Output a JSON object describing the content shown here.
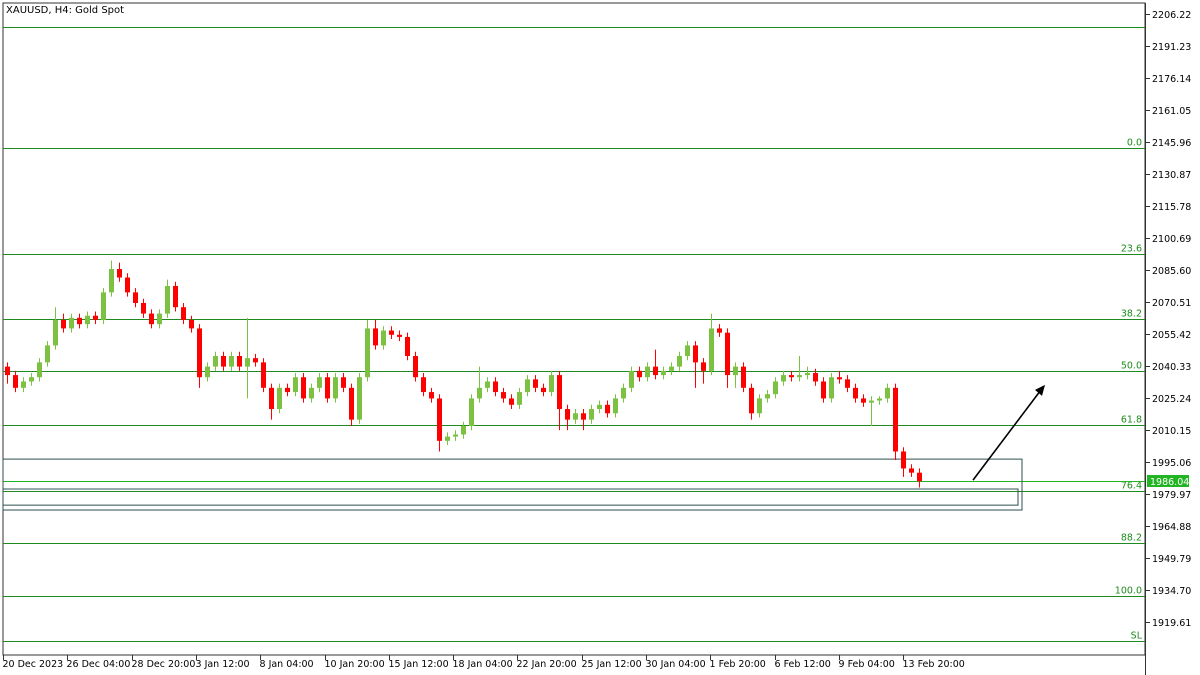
{
  "header": {
    "title": "XAUUSD, H4:  Gold Spot"
  },
  "colors": {
    "bull": "#7dc142",
    "bear": "#ff0000",
    "level_line": "#1f8a1f",
    "bid_line": "#22b422",
    "bid_badge": "#22b422",
    "zone": "#2f4f4f",
    "arrow": "#000000",
    "frame": "#333333"
  },
  "chart_data": {
    "type": "candlestick",
    "symbol": "XAUUSD",
    "timeframe": "H4",
    "ylim": [
      1900,
      2212
    ],
    "grid": false,
    "y_ticks": [
      "2206.22",
      "2191.23",
      "2176.14",
      "2161.05",
      "2145.96",
      "2130.87",
      "2115.78",
      "2100.69",
      "2085.60",
      "2070.51",
      "2055.42",
      "2040.33",
      "2025.24",
      "2010.15",
      "1995.06",
      "1979.97",
      "1964.88",
      "1949.79",
      "1934.70",
      "1919.61"
    ],
    "x_ticks": [
      "20 Dec 2023",
      "26 Dec 04:00",
      "28 Dec 20:00",
      "3 Jan 12:00",
      "8 Jan 04:00",
      "10 Jan 20:00",
      "15 Jan 12:00",
      "18 Jan 04:00",
      "22 Jan 20:00",
      "25 Jan 12:00",
      "30 Jan 04:00",
      "1 Feb 20:00",
      "6 Feb 12:00",
      "9 Feb 04:00",
      "13 Feb 20:00"
    ],
    "current_price": "1986.04",
    "levels": [
      {
        "label": "",
        "price": 2200.09
      },
      {
        "label": "0.0",
        "price": 2143.05
      },
      {
        "label": "23.6",
        "price": 2093.08
      },
      {
        "label": "38.2",
        "price": 2062.44
      },
      {
        "label": "50.0",
        "price": 2037.92
      },
      {
        "label": "61.8",
        "price": 2012.47
      },
      {
        "label": "76.4",
        "price": 1981.36
      },
      {
        "label": "88.2",
        "price": 1956.85
      },
      {
        "label": "100.0",
        "price": 1931.87
      },
      {
        "label": "SL",
        "price": 1910.65
      }
    ],
    "zones": [
      {
        "top": 1996.4,
        "bottom": 1972.4
      },
      {
        "top": 1982.3,
        "bottom": 1974.7
      }
    ],
    "arrow": {
      "from_price": 1986.5,
      "to_price": 2031.4
    },
    "ohlc": [
      [
        2040,
        2042,
        2032,
        2036
      ],
      [
        2036,
        2038,
        2028,
        2030
      ],
      [
        2030,
        2035,
        2028,
        2033
      ],
      [
        2033,
        2037,
        2031,
        2035
      ],
      [
        2035,
        2044,
        2033,
        2042
      ],
      [
        2042,
        2052,
        2040,
        2050
      ],
      [
        2050,
        2068,
        2048,
        2062
      ],
      [
        2062,
        2065,
        2056,
        2058
      ],
      [
        2058,
        2065,
        2056,
        2063
      ],
      [
        2063,
        2065,
        2058,
        2060
      ],
      [
        2060,
        2066,
        2058,
        2064
      ],
      [
        2064,
        2066,
        2060,
        2062
      ],
      [
        2062,
        2077,
        2060,
        2075
      ],
      [
        2075,
        2090,
        2073,
        2086
      ],
      [
        2086,
        2089,
        2080,
        2082
      ],
      [
        2082,
        2084,
        2073,
        2075
      ],
      [
        2075,
        2077,
        2068,
        2070
      ],
      [
        2070,
        2072,
        2063,
        2065
      ],
      [
        2065,
        2067,
        2058,
        2060
      ],
      [
        2060,
        2067,
        2058,
        2065
      ],
      [
        2065,
        2081,
        2063,
        2078
      ],
      [
        2078,
        2080,
        2066,
        2068
      ],
      [
        2068,
        2070,
        2060,
        2062
      ],
      [
        2062,
        2064,
        2056,
        2058
      ],
      [
        2058,
        2060,
        2030,
        2035
      ],
      [
        2035,
        2042,
        2033,
        2040
      ],
      [
        2040,
        2047,
        2038,
        2045
      ],
      [
        2045,
        2047,
        2038,
        2040
      ],
      [
        2040,
        2047,
        2038,
        2045
      ],
      [
        2045,
        2047,
        2038,
        2040
      ],
      [
        2040,
        2063,
        2025,
        2044
      ],
      [
        2044,
        2046,
        2040,
        2042
      ],
      [
        2042,
        2044,
        2028,
        2030
      ],
      [
        2030,
        2032,
        2015,
        2020
      ],
      [
        2020,
        2032,
        2018,
        2030
      ],
      [
        2030,
        2032,
        2026,
        2028
      ],
      [
        2028,
        2037,
        2026,
        2035
      ],
      [
        2035,
        2037,
        2023,
        2025
      ],
      [
        2025,
        2032,
        2023,
        2030
      ],
      [
        2030,
        2037,
        2028,
        2035
      ],
      [
        2035,
        2037,
        2023,
        2025
      ],
      [
        2025,
        2037,
        2023,
        2035
      ],
      [
        2035,
        2037,
        2028,
        2030
      ],
      [
        2030,
        2032,
        2012,
        2015
      ],
      [
        2015,
        2037,
        2013,
        2035
      ],
      [
        2035,
        2062,
        2033,
        2058
      ],
      [
        2058,
        2062,
        2048,
        2050
      ],
      [
        2050,
        2059,
        2048,
        2057
      ],
      [
        2057,
        2059,
        2053,
        2055
      ],
      [
        2055,
        2057,
        2052,
        2054
      ],
      [
        2054,
        2056,
        2043,
        2045
      ],
      [
        2045,
        2047,
        2033,
        2035
      ],
      [
        2035,
        2037,
        2026,
        2028
      ],
      [
        2028,
        2030,
        2023,
        2025
      ],
      [
        2025,
        2027,
        2000,
        2005
      ],
      [
        2005,
        2009,
        2003,
        2007
      ],
      [
        2007,
        2010,
        2005,
        2008
      ],
      [
        2008,
        2014,
        2006,
        2012
      ],
      [
        2012,
        2027,
        2010,
        2025
      ],
      [
        2025,
        2040,
        2023,
        2030
      ],
      [
        2030,
        2035,
        2028,
        2033
      ],
      [
        2033,
        2035,
        2026,
        2028
      ],
      [
        2028,
        2030,
        2023,
        2025
      ],
      [
        2025,
        2027,
        2020,
        2022
      ],
      [
        2022,
        2030,
        2020,
        2028
      ],
      [
        2028,
        2036,
        2026,
        2034
      ],
      [
        2034,
        2036,
        2028,
        2030
      ],
      [
        2030,
        2032,
        2026,
        2028
      ],
      [
        2028,
        2038,
        2026,
        2036
      ],
      [
        2036,
        2038,
        2010,
        2020
      ],
      [
        2020,
        2022,
        2010,
        2015
      ],
      [
        2015,
        2020,
        2013,
        2018
      ],
      [
        2018,
        2020,
        2010,
        2015
      ],
      [
        2015,
        2022,
        2013,
        2020
      ],
      [
        2020,
        2024,
        2018,
        2022
      ],
      [
        2022,
        2024,
        2016,
        2018
      ],
      [
        2018,
        2027,
        2016,
        2025
      ],
      [
        2025,
        2032,
        2023,
        2030
      ],
      [
        2030,
        2040,
        2028,
        2038
      ],
      [
        2038,
        2040,
        2033,
        2035
      ],
      [
        2035,
        2042,
        2033,
        2040
      ],
      [
        2040,
        2048,
        2034,
        2036
      ],
      [
        2036,
        2040,
        2034,
        2038
      ],
      [
        2038,
        2042,
        2036,
        2040
      ],
      [
        2040,
        2047,
        2038,
        2045
      ],
      [
        2045,
        2052,
        2043,
        2050
      ],
      [
        2050,
        2052,
        2030,
        2042
      ],
      [
        2042,
        2044,
        2032,
        2038
      ],
      [
        2038,
        2065,
        2036,
        2058
      ],
      [
        2058,
        2060,
        2054,
        2056
      ],
      [
        2056,
        2058,
        2030,
        2036
      ],
      [
        2036,
        2042,
        2030,
        2040
      ],
      [
        2040,
        2042,
        2028,
        2030
      ],
      [
        2030,
        2032,
        2015,
        2018
      ],
      [
        2018,
        2027,
        2016,
        2025
      ],
      [
        2025,
        2029,
        2023,
        2027
      ],
      [
        2027,
        2035,
        2025,
        2033
      ],
      [
        2033,
        2038,
        2031,
        2036
      ],
      [
        2036,
        2038,
        2033,
        2035
      ],
      [
        2035,
        2045,
        2033,
        2036
      ],
      [
        2036,
        2040,
        2034,
        2037
      ],
      [
        2037,
        2039,
        2031,
        2033
      ],
      [
        2033,
        2035,
        2023,
        2025
      ],
      [
        2025,
        2037,
        2023,
        2035
      ],
      [
        2035,
        2038,
        2032,
        2034
      ],
      [
        2034,
        2036,
        2028,
        2030
      ],
      [
        2030,
        2032,
        2023,
        2025
      ],
      [
        2025,
        2027,
        2021,
        2023
      ],
      [
        2023,
        2026,
        2012,
        2024
      ],
      [
        2024,
        2026,
        2022,
        2025
      ],
      [
        2025,
        2032,
        2023,
        2030
      ],
      [
        2030,
        2032,
        1996,
        2000
      ],
      [
        2000,
        2002,
        1988,
        1992
      ],
      [
        1992,
        1994,
        1988,
        1990
      ],
      [
        1990,
        1992,
        1983,
        1986
      ]
    ]
  }
}
